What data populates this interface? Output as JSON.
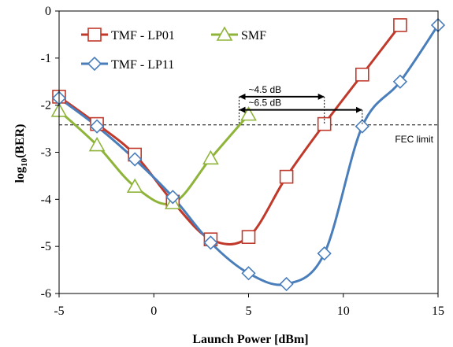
{
  "chart_data": {
    "type": "line",
    "xlabel": "Launch Power [dBm]",
    "ylabel_main": "log",
    "ylabel_sub": "10",
    "ylabel_tail": "(BER)",
    "xlim": [
      -5,
      15
    ],
    "ylim": [
      -6,
      0
    ],
    "xticks": [
      -5,
      0,
      5,
      10,
      15
    ],
    "yticks": [
      0,
      -1,
      -2,
      -3,
      -4,
      -5,
      -6
    ],
    "xtick_labels": [
      "-5",
      "0",
      "5",
      "10",
      "15"
    ],
    "ytick_labels": [
      "0",
      "-1",
      "-2",
      "-3",
      "-4",
      "-5",
      "-6"
    ],
    "grid": false,
    "legend_position": "top-left",
    "series": [
      {
        "name": "TMF - LP01",
        "color": "#c0392b",
        "marker": "square",
        "x": [
          -5,
          -3,
          -1,
          1,
          3,
          5,
          7,
          9,
          11,
          13
        ],
        "y": [
          -1.82,
          -2.4,
          -3.05,
          -4.05,
          -4.85,
          -4.8,
          -3.52,
          -2.4,
          -1.35,
          -0.3
        ]
      },
      {
        "name": "SMF",
        "color": "#8fb43a",
        "marker": "triangle",
        "x": [
          -5,
          -3,
          -1,
          1,
          3,
          5
        ],
        "y": [
          -2.12,
          -2.85,
          -3.73,
          -4.08,
          -3.13,
          -2.2
        ]
      },
      {
        "name": "TMF - LP11",
        "color": "#4a7ebb",
        "marker": "diamond",
        "x": [
          -5,
          -3,
          -1,
          1,
          3,
          5,
          7,
          9,
          11,
          13,
          15
        ],
        "y": [
          -1.85,
          -2.45,
          -3.15,
          -3.95,
          -4.92,
          -5.57,
          -5.8,
          -5.15,
          -2.45,
          -1.5,
          -0.3
        ]
      }
    ],
    "threshold": {
      "y": -2.42,
      "label": "FEC limit"
    },
    "annotations": [
      {
        "label": "~4.5 dB",
        "x_start": 4.5,
        "x_end": 9.0,
        "y": -1.82
      },
      {
        "label": "~6.5 dB",
        "x_start": 4.5,
        "x_end": 11.0,
        "y": -2.1
      }
    ]
  }
}
